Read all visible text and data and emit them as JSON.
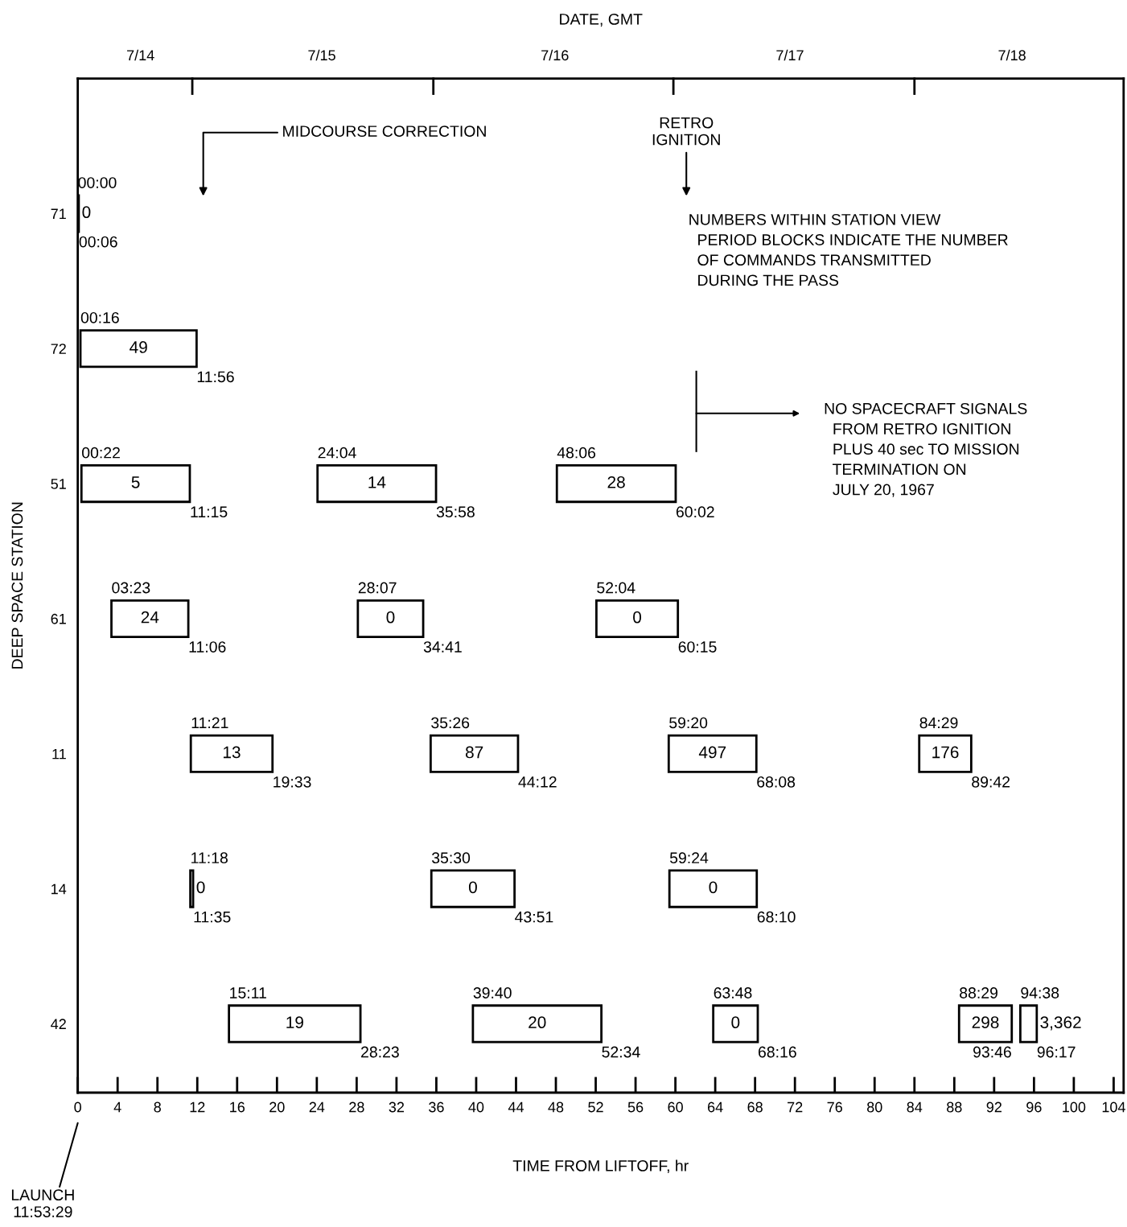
{
  "chart_data": {
    "type": "bar",
    "orientation": "horizontal",
    "xlabel": "TIME FROM LIFTOFF, hr",
    "x2label": "DATE, GMT",
    "ylabel": "DEEP SPACE STATION",
    "categories": [
      "71",
      "72",
      "51",
      "61",
      "11",
      "14",
      "42"
    ],
    "xlim": [
      0,
      105
    ],
    "xticks": [
      0,
      4,
      8,
      12,
      16,
      20,
      24,
      28,
      32,
      36,
      40,
      44,
      48,
      52,
      56,
      60,
      64,
      68,
      72,
      76,
      80,
      84,
      88,
      92,
      96,
      100,
      104
    ],
    "grid": false,
    "series": [
      {
        "color": "#000000",
        "base": [
          0,
          0.27,
          0.37,
          3.38,
          11.35,
          11.3,
          15.18
        ],
        "values": [
          0.1,
          11.66,
          10.88,
          7.72,
          8.2,
          0.28,
          13.2
        ]
      },
      {
        "color": "#000000",
        "base": [
          null,
          null,
          24.07,
          28.12,
          35.43,
          35.5,
          39.67
        ],
        "values": [
          null,
          null,
          11.9,
          6.56,
          8.77,
          8.35,
          12.9
        ]
      },
      {
        "color": "#000000",
        "base": [
          null,
          null,
          48.1,
          52.07,
          59.33,
          59.4,
          63.8
        ],
        "values": [
          null,
          null,
          11.93,
          8.18,
          8.8,
          8.77,
          4.47
        ]
      },
      {
        "color": "#000000",
        "base": [
          null,
          null,
          null,
          null,
          84.48,
          null,
          88.48
        ],
        "values": [
          null,
          null,
          null,
          null,
          5.22,
          null,
          5.29
        ]
      },
      {
        "color": "#000000",
        "base": [
          null,
          null,
          null,
          null,
          null,
          null,
          94.63
        ],
        "values": [
          null,
          null,
          null,
          null,
          null,
          null,
          1.65
        ]
      }
    ],
    "annotations": [
      "MIDCOURSE CORRECTION",
      "RETRO\nIGNITION",
      "NUMBERS WITHIN STATION VIEW\n  PERIOD BLOCKS INDICATE THE NUMBER\n  OF COMMANDS TRANSMITTED\n  DURING THE PASS",
      "NO SPACECRAFT SIGNALS\n  FROM RETRO IGNITION\n  PLUS 40 sec TO MISSION\n  TERMINATION ON\n  JULY 20, 1967",
      "LAUNCH\n11:53:29",
      "7/14",
      "7/15",
      "7/16",
      "7/17",
      "7/18",
      {
        "text": "00:00",
        "x": 0,
        "y": "71"
      },
      {
        "text": "00:06",
        "x": 0.1,
        "y": "71"
      },
      {
        "text": "00:16",
        "x": 0.27,
        "y": "72"
      },
      {
        "text": "11:56",
        "x": 11.93,
        "y": "72"
      },
      {
        "text": "00:22",
        "x": 0.37,
        "y": "51"
      },
      {
        "text": "11:15",
        "x": 11.25,
        "y": "51"
      },
      {
        "text": "24:04",
        "x": 24.07,
        "y": "51"
      },
      {
        "text": "35:58",
        "x": 35.97,
        "y": "51"
      },
      {
        "text": "48:06",
        "x": 48.1,
        "y": "51"
      },
      {
        "text": "60:02",
        "x": 60.03,
        "y": "51"
      },
      {
        "text": "03:23",
        "x": 3.38,
        "y": "61"
      },
      {
        "text": "11:06",
        "x": 11.1,
        "y": "61"
      },
      {
        "text": "28:07",
        "x": 28.12,
        "y": "61"
      },
      {
        "text": "34:41",
        "x": 34.68,
        "y": "61"
      },
      {
        "text": "52:04",
        "x": 52.07,
        "y": "61"
      },
      {
        "text": "60:15",
        "x": 60.25,
        "y": "61"
      },
      {
        "text": "11:21",
        "x": 11.35,
        "y": "11"
      },
      {
        "text": "19:33",
        "x": 19.55,
        "y": "11"
      },
      {
        "text": "35:26",
        "x": 35.43,
        "y": "11"
      },
      {
        "text": "44:12",
        "x": 44.2,
        "y": "11"
      },
      {
        "text": "59:20",
        "x": 59.33,
        "y": "11"
      },
      {
        "text": "68:08",
        "x": 68.13,
        "y": "11"
      },
      {
        "text": "84:29",
        "x": 84.48,
        "y": "11"
      },
      {
        "text": "89:42",
        "x": 89.7,
        "y": "11"
      },
      {
        "text": "11:18",
        "x": 11.3,
        "y": "14"
      },
      {
        "text": "11:35",
        "x": 11.58,
        "y": "14"
      },
      {
        "text": "35:30",
        "x": 35.5,
        "y": "14"
      },
      {
        "text": "43:51",
        "x": 43.85,
        "y": "14"
      },
      {
        "text": "59:24",
        "x": 59.4,
        "y": "14"
      },
      {
        "text": "68:10",
        "x": 68.17,
        "y": "14"
      },
      {
        "text": "15:11",
        "x": 15.18,
        "y": "42"
      },
      {
        "text": "28:23",
        "x": 28.38,
        "y": "42"
      },
      {
        "text": "39:40",
        "x": 39.67,
        "y": "42"
      },
      {
        "text": "52:34",
        "x": 52.57,
        "y": "42"
      },
      {
        "text": "63:48",
        "x": 63.8,
        "y": "42"
      },
      {
        "text": "68:16",
        "x": 68.27,
        "y": "42"
      },
      {
        "text": "88:29",
        "x": 88.48,
        "y": "42"
      },
      {
        "text": "93:46",
        "x": 93.77,
        "y": "42"
      },
      {
        "text": "94:38",
        "x": 94.63,
        "y": "42"
      },
      {
        "text": "96:17",
        "x": 96.28,
        "y": "42"
      },
      "0",
      "49",
      "5",
      "14",
      "28",
      "24",
      "0",
      "0",
      "13",
      "87",
      "497",
      "176",
      "0",
      "0",
      "0",
      "19",
      "20",
      "0",
      "298",
      "3,362"
    ]
  }
}
